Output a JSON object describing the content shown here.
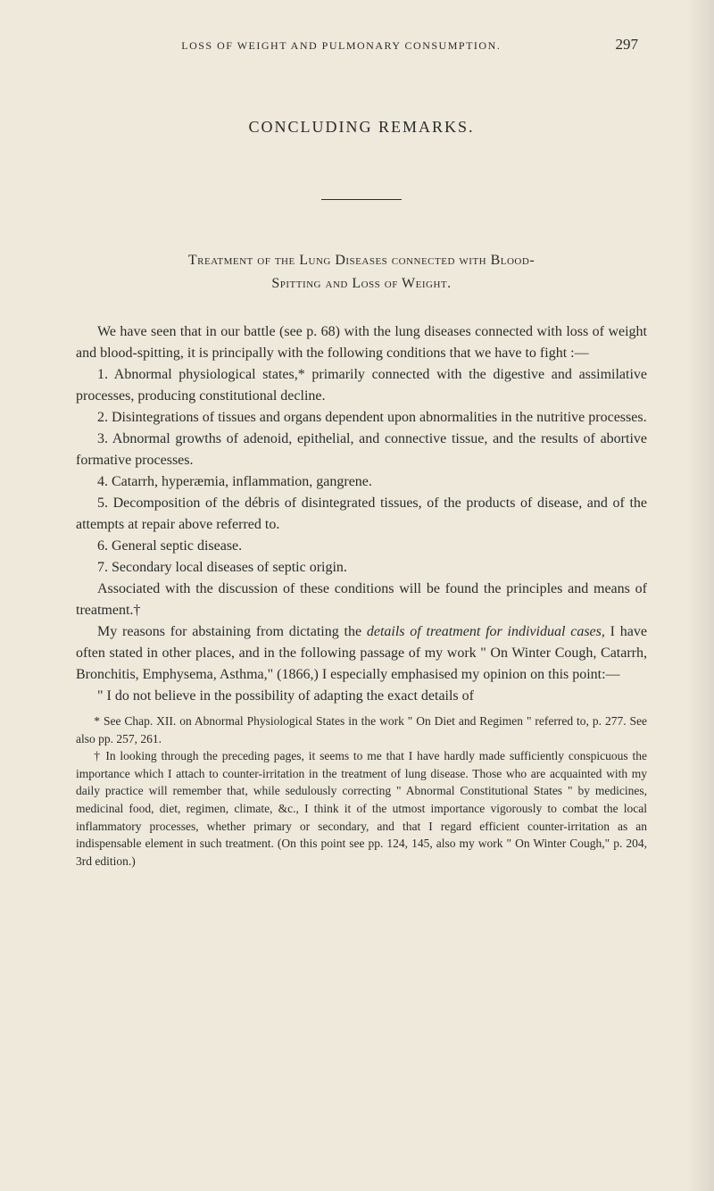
{
  "page": {
    "running_head": "LOSS OF WEIGHT AND PULMONARY CONSUMPTION.",
    "number": "297",
    "title": "CONCLUDING REMARKS.",
    "section_heading_line1": "Treatment of the Lung Diseases connected with Blood-",
    "section_heading_line2": "Spitting and Loss of Weight."
  },
  "paragraphs": {
    "p1": "We have seen that in our battle (see p. 68) with the lung diseases connected with loss of weight and blood-spitting, it is principally with the following conditions that we have to fight :—",
    "p2": "1. Abnormal physiological states,* primarily connected with the digestive and assimilative processes, producing constitutional decline.",
    "p3": "2. Disintegrations of tissues and organs dependent upon abnormalities in the nutritive processes.",
    "p4": "3. Abnormal growths of adenoid, epithelial, and connective tissue, and the results of abortive formative processes.",
    "p5": "4. Catarrh, hyperæmia, inflammation, gangrene.",
    "p6": "5. Decomposition of the débris of disintegrated tissues, of the products of disease, and of the attempts at repair above referred to.",
    "p7": "6. General septic disease.",
    "p8": "7. Secondary local diseases of septic origin.",
    "p9": "Associated with the discussion of these conditions will be found the principles and means of treatment.†",
    "p10_pre": "My reasons for abstaining from dictating the ",
    "p10_italic1": "details of treatment for individual cases",
    "p10_mid": ", I have often stated in other places, and in the following passage of my work \" On Winter Cough, Catarrh, Bronchitis, Emphysema, Asthma,\" (1866,) I especially emphasised my opinion on this point:—",
    "p11": "\" I do not believe in the possibility of adapting the exact details of"
  },
  "footnotes": {
    "f1": "* See Chap. XII. on Abnormal Physiological States in the work \" On Diet and Regimen \" referred to, p. 277.   See also pp. 257, 261.",
    "f2": "† In looking through the preceding pages, it seems to me that I have hardly made sufficiently conspicuous the importance which I attach to counter-irritation in the treatment of lung disease.   Those who are acquainted with my daily practice will remember that, while sedulously correcting \" Abnormal Constitutional States \" by medicines, medicinal food, diet, regimen, climate, &c., I think it of the utmost importance vigorously to combat the local inflammatory processes, whether primary or secondary, and that I regard efficient counter-irritation as an indispensable element in such treatment.   (On this point see pp. 124, 145, also my work \" On Winter Cough,\" p. 204, 3rd edition.)"
  }
}
